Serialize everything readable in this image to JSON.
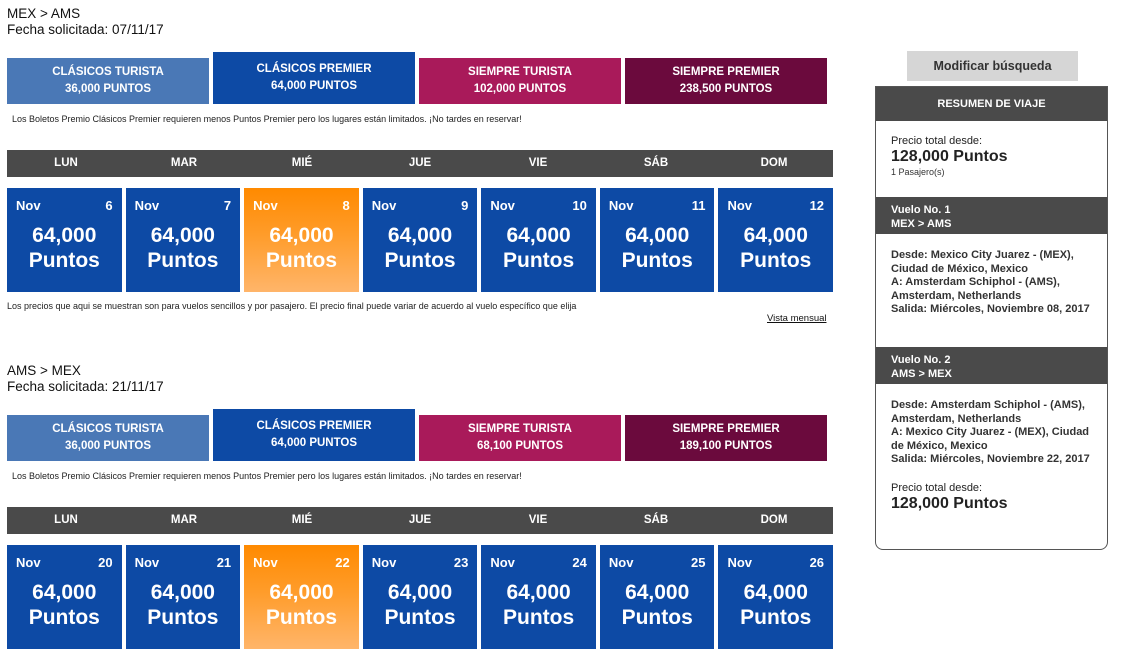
{
  "outbound": {
    "route": "MEX > AMS",
    "requested_date": "Fecha solicitada: 07/11/17",
    "fares": [
      {
        "name": "CLÁSICOS TURISTA",
        "points": "36,000 PUNTOS"
      },
      {
        "name": "CLÁSICOS PREMIER",
        "points": "64,000 PUNTOS"
      },
      {
        "name": "SIEMPRE TURISTA",
        "points": "102,000 PUNTOS"
      },
      {
        "name": "SIEMPRE PREMIER",
        "points": "238,500 PUNTOS"
      }
    ],
    "note": "Los Boletos Premio Clásicos Premier requieren menos Puntos Premier pero los lugares están limitados. ¡No tardes en reservar!",
    "days": [
      "LUN",
      "MAR",
      "MIÉ",
      "JUE",
      "VIE",
      "SÁB",
      "DOM"
    ],
    "cards": [
      {
        "month": "Nov",
        "day": "6",
        "price": "64,000",
        "unit": "Puntos"
      },
      {
        "month": "Nov",
        "day": "7",
        "price": "64,000",
        "unit": "Puntos"
      },
      {
        "month": "Nov",
        "day": "8",
        "price": "64,000",
        "unit": "Puntos"
      },
      {
        "month": "Nov",
        "day": "9",
        "price": "64,000",
        "unit": "Puntos"
      },
      {
        "month": "Nov",
        "day": "10",
        "price": "64,000",
        "unit": "Puntos"
      },
      {
        "month": "Nov",
        "day": "11",
        "price": "64,000",
        "unit": "Puntos"
      },
      {
        "month": "Nov",
        "day": "12",
        "price": "64,000",
        "unit": "Puntos"
      }
    ],
    "footnote": "Los precios que aqui se muestran son para vuelos sencillos y por pasajero. El precio final puede variar de acuerdo al vuelo específico que elija",
    "monthly_link": "Vista mensual"
  },
  "return": {
    "route": "AMS > MEX",
    "requested_date": "Fecha solicitada: 21/11/17",
    "fares": [
      {
        "name": "CLÁSICOS TURISTA",
        "points": "36,000 PUNTOS"
      },
      {
        "name": "CLÁSICOS PREMIER",
        "points": "64,000 PUNTOS"
      },
      {
        "name": "SIEMPRE TURISTA",
        "points": "68,100 PUNTOS"
      },
      {
        "name": "SIEMPRE PREMIER",
        "points": "189,100 PUNTOS"
      }
    ],
    "note": "Los Boletos Premio Clásicos Premier requieren menos Puntos Premier pero los lugares están limitados. ¡No tardes en reservar!",
    "days": [
      "LUN",
      "MAR",
      "MIÉ",
      "JUE",
      "VIE",
      "SÁB",
      "DOM"
    ],
    "cards": [
      {
        "month": "Nov",
        "day": "20",
        "price": "64,000",
        "unit": "Puntos"
      },
      {
        "month": "Nov",
        "day": "21",
        "price": "64,000",
        "unit": "Puntos"
      },
      {
        "month": "Nov",
        "day": "22",
        "price": "64,000",
        "unit": "Puntos"
      },
      {
        "month": "Nov",
        "day": "23",
        "price": "64,000",
        "unit": "Puntos"
      },
      {
        "month": "Nov",
        "day": "24",
        "price": "64,000",
        "unit": "Puntos"
      },
      {
        "month": "Nov",
        "day": "25",
        "price": "64,000",
        "unit": "Puntos"
      },
      {
        "month": "Nov",
        "day": "26",
        "price": "64,000",
        "unit": "Puntos"
      }
    ]
  },
  "sidebar": {
    "modify_button": "Modificar búsqueda",
    "summary_title": "RESUMEN DE VIAJE",
    "total_label": "Precio total desde:",
    "total_value": "128,000 Puntos",
    "passengers": "1 Pasajero(s)",
    "flight1": {
      "title": "Vuelo No. 1",
      "route": "MEX > AMS",
      "from": "Desde: Mexico City Juarez - (MEX), Ciudad de México, Mexico",
      "to": "A: Amsterdam Schiphol - (AMS), Amsterdam, Netherlands",
      "departure": "Salida: Miércoles, Noviembre 08, 2017"
    },
    "flight2": {
      "title": "Vuelo No. 2",
      "route": "AMS > MEX",
      "from": "Desde: Amsterdam Schiphol - (AMS), Amsterdam, Netherlands",
      "to": "A: Mexico City Juarez - (MEX), Ciudad de México, Mexico",
      "departure": "Salida: Miércoles, Noviembre 22, 2017"
    },
    "total_label_2": "Precio total desde:",
    "total_value_2": "128,000 Puntos"
  },
  "colors": {
    "clasicos_turista": "#4a78b6",
    "clasicos_premier": "#0d4aa5",
    "siempre_turista": "#a91a5a",
    "siempre_premier": "#6b0a3d",
    "selected_day": "#ff8a00",
    "header_gray": "#4a4a4a"
  }
}
